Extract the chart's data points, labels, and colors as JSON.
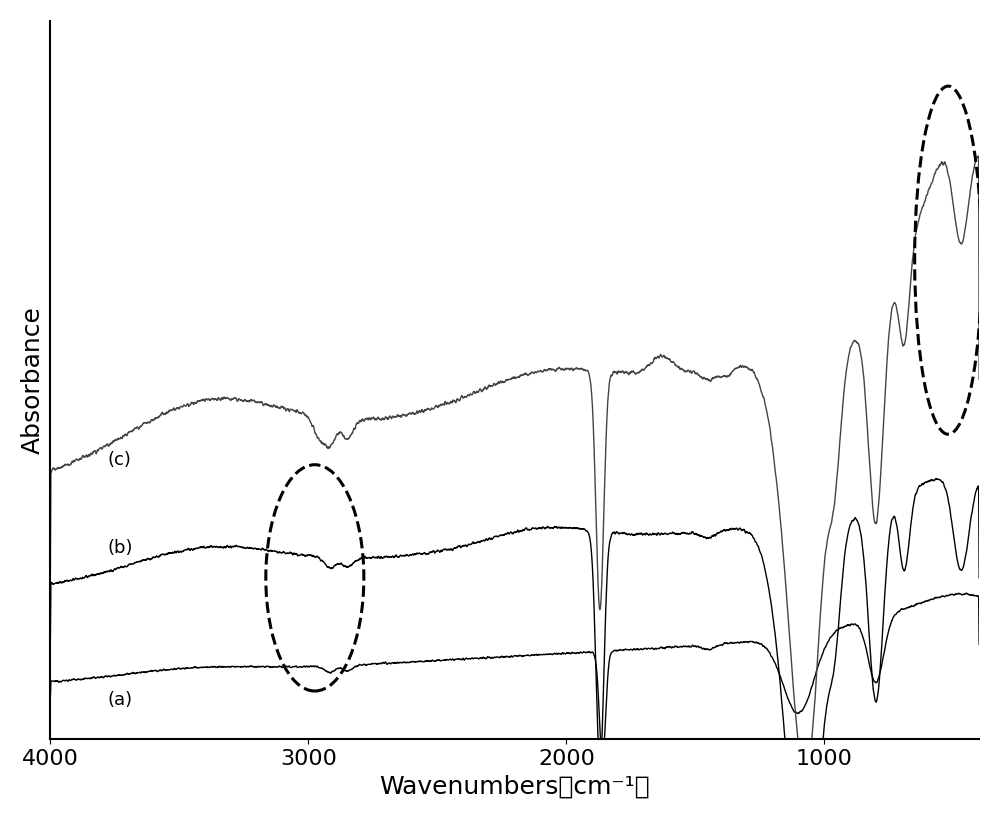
{
  "xlabel": "Wavenumbers（cm⁻¹）",
  "ylabel": "Absorbance",
  "xlim": [
    4000,
    400
  ],
  "x_ticks": [
    4000,
    3000,
    2000,
    1000
  ],
  "background_color": "#ffffff",
  "line_color_ab": "#000000",
  "line_color_c": "#444444",
  "xlabel_fontsize": 18,
  "ylabel_fontsize": 18,
  "tick_fontsize": 16,
  "label_a": "(a)",
  "label_b": "(b)",
  "label_c": "(c)"
}
